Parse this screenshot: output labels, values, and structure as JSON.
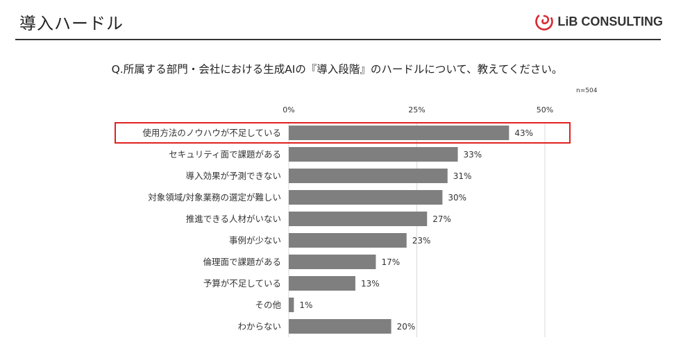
{
  "page": {
    "title": "導入ハードル",
    "logo_text": "LiB CONSULTING",
    "question": "Q.所属する部門・会社における生成AIの『導入段階』のハードルについて、教えてください。",
    "sample_size": "n=504"
  },
  "colors": {
    "bar": "#7f7f7f",
    "highlight": "#e02020",
    "grid": "#d9d9d9",
    "logo_red": "#d7282f"
  },
  "chart_data": {
    "type": "bar",
    "orientation": "horizontal",
    "title": "",
    "xlabel": "",
    "ylabel": "",
    "xlim": [
      0,
      50
    ],
    "ticks": [
      0,
      25,
      50
    ],
    "tick_labels": [
      "0%",
      "25%",
      "50%"
    ],
    "grid": true,
    "categories": [
      "使用方法のノウハウが不足している",
      "セキュリティ面で課題がある",
      "導入効果が予測できない",
      "対象領域/対象業務の選定が難しい",
      "推進できる人材がいない",
      "事例が少ない",
      "倫理面で課題がある",
      "予算が不足している",
      "その他",
      "わからない"
    ],
    "values": [
      43,
      33,
      31,
      30,
      27,
      23,
      17,
      13,
      1,
      20
    ],
    "value_labels": [
      "43%",
      "33%",
      "31%",
      "30%",
      "27%",
      "23%",
      "17%",
      "13%",
      "1%",
      "20%"
    ],
    "highlighted_index": 0
  }
}
